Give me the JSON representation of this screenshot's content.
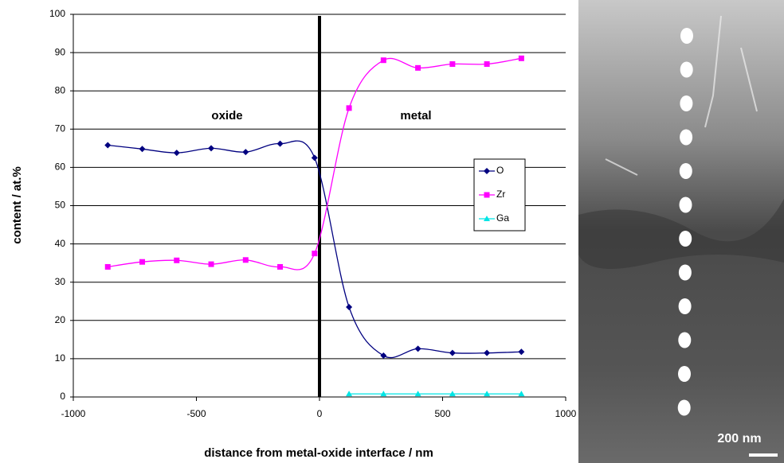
{
  "chart_data": {
    "type": "line",
    "x_label": "distance from metal-oxide interface / nm",
    "y_label": "content / at.%",
    "annotations": [
      "oxide",
      "metal"
    ],
    "x": [
      -860,
      -720,
      -580,
      -440,
      -300,
      -160,
      -20,
      120,
      260,
      400,
      540,
      680,
      820
    ],
    "series": [
      {
        "name": "O",
        "color": "#000080",
        "marker": "diamond",
        "values": [
          65.8,
          64.8,
          63.8,
          65,
          64,
          66.2,
          62.5,
          23.5,
          10.8,
          12.6,
          11.5,
          11.5,
          11.8
        ]
      },
      {
        "name": "Zr",
        "color": "#ff00ff",
        "marker": "square",
        "values": [
          34,
          35.3,
          35.7,
          34.7,
          35.8,
          34,
          37.5,
          75.5,
          88,
          86,
          87,
          87,
          88.5
        ]
      },
      {
        "name": "Ga",
        "color": "#00e5e5",
        "marker": "triangle",
        "values": [
          null,
          null,
          null,
          null,
          null,
          null,
          null,
          0.8,
          0.8,
          0.8,
          0.8,
          0.8,
          0.8
        ]
      }
    ],
    "xlim": [
      -1000,
      1000
    ],
    "xticks": [
      -1000,
      -500,
      0,
      500,
      1000
    ],
    "ylim": [
      0,
      100
    ],
    "yticks": [
      0,
      10,
      20,
      30,
      40,
      50,
      60,
      70,
      80,
      90,
      100
    ],
    "grid": true,
    "legend": "right"
  },
  "image": {
    "scale_bar": "200 nm"
  }
}
